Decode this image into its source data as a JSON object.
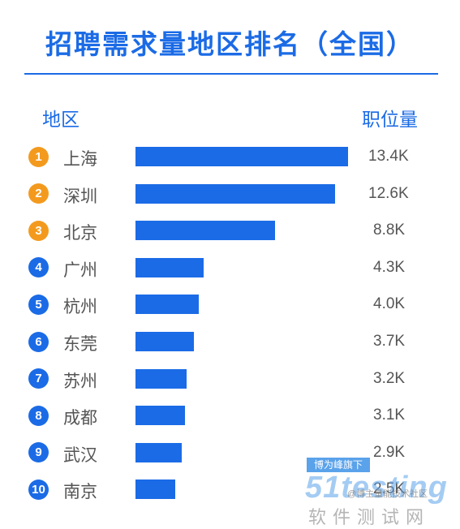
{
  "chart_data": {
    "type": "bar",
    "orientation": "horizontal",
    "title": "招聘需求量地区排名（全国）",
    "category_header": "地区",
    "value_header": "职位量",
    "categories": [
      "上海",
      "深圳",
      "北京",
      "广州",
      "杭州",
      "东莞",
      "苏州",
      "成都",
      "武汉",
      "南京"
    ],
    "ranks": [
      "1",
      "2",
      "3",
      "4",
      "5",
      "6",
      "7",
      "8",
      "9",
      "10"
    ],
    "values": [
      13.4,
      12.6,
      8.8,
      4.3,
      4.0,
      3.7,
      3.2,
      3.1,
      2.9,
      2.5
    ],
    "value_labels": [
      "13.4K",
      "12.6K",
      "8.8K",
      "4.3K",
      "4.0K",
      "3.7K",
      "3.2K",
      "3.1K",
      "2.9K",
      "2.5K"
    ],
    "xlim": [
      0,
      13.4
    ],
    "grid": false,
    "legend": "none",
    "colors": {
      "bar": "#1b6be6",
      "title": "#1b6be6",
      "rank_top3": "#f39a1e",
      "rank_other": "#1b6be6"
    }
  },
  "watermark": {
    "tag": "博为峰旗下",
    "logo": "51testing",
    "subtitle": "软件测试网",
    "note": "@博主量能技术社区"
  }
}
